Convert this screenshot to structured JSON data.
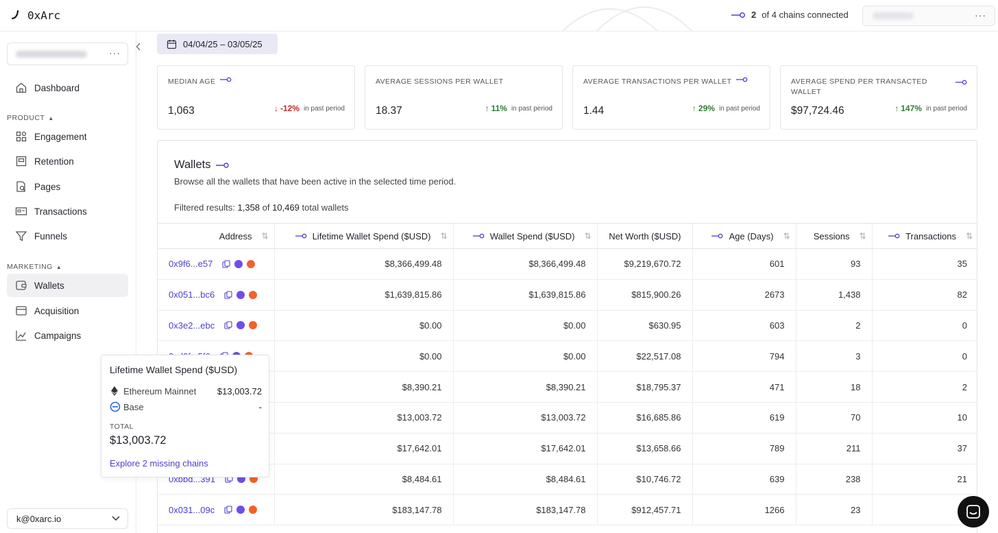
{
  "app": {
    "name": "0xArc"
  },
  "header": {
    "chains_icon": "link-icon",
    "chains_connected": "2",
    "chains_text": "of 4 chains connected",
    "menu": "···"
  },
  "sidebar": {
    "workspace_menu": "···",
    "items": [
      {
        "label": "Dashboard",
        "icon": "home-icon"
      }
    ],
    "product_label": "PRODUCT",
    "product_items": [
      {
        "label": "Engagement",
        "icon": "grid-icon"
      },
      {
        "label": "Retention",
        "icon": "calendar-icon"
      },
      {
        "label": "Pages",
        "icon": "page-search-icon"
      },
      {
        "label": "Transactions",
        "icon": "card-icon"
      },
      {
        "label": "Funnels",
        "icon": "funnel-icon"
      }
    ],
    "marketing_label": "MARKETING",
    "marketing_items": [
      {
        "label": "Wallets",
        "icon": "wallet-icon",
        "active": true
      },
      {
        "label": "Acquisition",
        "icon": "acquisition-icon"
      },
      {
        "label": "Campaigns",
        "icon": "chart-icon"
      }
    ],
    "account": "k@0xarc.io"
  },
  "date_range": "04/04/25 – 03/05/25",
  "stats": [
    {
      "label": "MEDIAN AGE",
      "value": "1,063",
      "delta": "-12%",
      "direction": "down",
      "suffix": "in past period"
    },
    {
      "label": "AVERAGE SESSIONS PER WALLET",
      "value": "18.37",
      "delta": "11%",
      "direction": "up",
      "suffix": "in past period"
    },
    {
      "label": "AVERAGE TRANSACTIONS PER WALLET",
      "value": "1.44",
      "delta": "29%",
      "direction": "up",
      "suffix": "in past period"
    },
    {
      "label": "AVERAGE SPEND PER TRANSACTED WALLET",
      "value": "$97,724.46",
      "delta": "147%",
      "direction": "up",
      "suffix": "in past period"
    }
  ],
  "wallets": {
    "title": "Wallets",
    "subtitle": "Browse all the wallets that have been active in the selected time period.",
    "filter_prefix": "Filtered results:",
    "filter_count": "1,358",
    "filter_of": "of",
    "filter_total": "10,469",
    "filter_suffix": "total wallets",
    "columns": [
      "Address",
      "Lifetime Wallet Spend ($USD)",
      "Wallet Spend ($USD)",
      "Net Worth ($USD)",
      "Age (Days)",
      "Sessions",
      "Transactions"
    ],
    "rows": [
      [
        "0x9f6...e57",
        "$8,366,499.48",
        "$8,366,499.48",
        "$9,219,670.72",
        "601",
        "93",
        "35"
      ],
      [
        "0x051...bc6",
        "$1,639,815.86",
        "$1,639,815.86",
        "$815,900.26",
        "2673",
        "1,438",
        "82"
      ],
      [
        "0x3e2...ebc",
        "$0.00",
        "$0.00",
        "$630.95",
        "603",
        "2",
        "0"
      ],
      [
        "0xd0f...5f6",
        "$0.00",
        "$0.00",
        "$22,517.08",
        "794",
        "3",
        "0"
      ],
      [
        "",
        "$8,390.21",
        "$8,390.21",
        "$18,795.37",
        "471",
        "18",
        "2"
      ],
      [
        "",
        "$13,003.72",
        "$13,003.72",
        "$16,685.86",
        "619",
        "70",
        "10"
      ],
      [
        "",
        "$17,642.01",
        "$17,642.01",
        "$13,658.66",
        "789",
        "211",
        "37"
      ],
      [
        "0xbbd...391",
        "$8,484.61",
        "$8,484.61",
        "$10,746.72",
        "639",
        "238",
        "21"
      ],
      [
        "0x031...09c",
        "$183,147.78",
        "$183,147.78",
        "$912,457.71",
        "1266",
        "23",
        ""
      ]
    ]
  },
  "tooltip": {
    "title": "Lifetime Wallet Spend ($USD)",
    "chains": [
      {
        "name": "Ethereum Mainnet",
        "value": "$13,003.72",
        "icon": "ethereum-icon"
      },
      {
        "name": "Base",
        "value": "-",
        "icon": "base-icon"
      }
    ],
    "total_label": "TOTAL",
    "total_value": "$13,003.72",
    "link": "Explore 2 missing chains"
  },
  "colors": {
    "accent": "#4a3fd1",
    "up": "#2e7d32",
    "down": "#c62828",
    "active_bg": "#f0f0f3",
    "date_bg": "#e9e9f5"
  }
}
